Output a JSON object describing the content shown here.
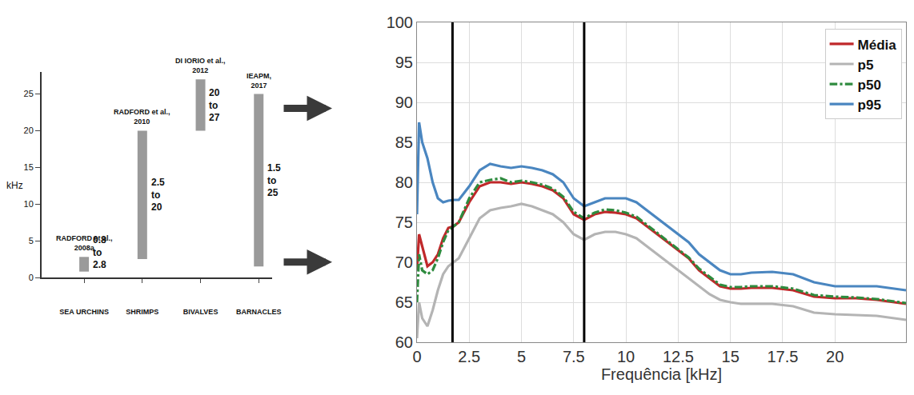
{
  "chart_data": [
    {
      "type": "range_bar",
      "y_label": "kHz",
      "categories": [
        "SEA URCHINS",
        "SHRIMPS",
        "BIVALVES",
        "BARNACLES"
      ],
      "low": [
        0.8,
        2.5,
        20,
        1.5
      ],
      "high": [
        2.8,
        20,
        27,
        25
      ],
      "value_labels": [
        "0.8 to 2.8",
        "2.5 to 20",
        "20 to 27",
        "1.5 to 25"
      ],
      "annotations": [
        "RADFORD et al., 2008a",
        "RADFORD et al., 2010",
        "DI IORIO et al., 2012",
        "IEAPM, 2017"
      ],
      "color": "#9a9a9a",
      "ylim": [
        0,
        28
      ],
      "yticks": [
        0,
        5,
        10,
        15,
        20,
        25
      ],
      "grid": false
    },
    {
      "type": "line",
      "x_label": "Frequência [kHz]",
      "x": [
        0,
        0.1,
        0.25,
        0.5,
        0.75,
        1,
        1.25,
        1.5,
        1.75,
        2,
        2.5,
        3,
        3.5,
        4,
        4.5,
        5,
        5.5,
        6,
        6.5,
        7,
        7.5,
        8,
        8.5,
        9,
        9.5,
        10,
        10.5,
        11,
        11.5,
        12,
        12.5,
        13,
        13.5,
        14,
        14.5,
        15,
        15.5,
        16,
        17,
        18,
        19,
        20,
        21,
        22,
        23.4
      ],
      "series": [
        {
          "name": "Média",
          "color": "#c0282a",
          "line_style": "solid",
          "values": [
            69,
            73.5,
            72,
            69.5,
            70,
            71,
            73,
            74.3,
            74.5,
            75,
            77.5,
            79.5,
            80,
            80,
            79.8,
            80,
            79.8,
            79.5,
            79,
            78,
            76,
            75.3,
            76,
            76.3,
            76.2,
            76,
            75.5,
            74.5,
            73.5,
            72.5,
            71.5,
            70.5,
            69,
            68,
            67,
            66.7,
            66.7,
            66.8,
            66.8,
            66.5,
            65.7,
            65.5,
            65.5,
            65.3,
            64.8
          ]
        },
        {
          "name": "p5",
          "color": "#b4b4b4",
          "line_style": "solid",
          "values": [
            60.5,
            65,
            63,
            62,
            64,
            66.5,
            68.5,
            69.5,
            70,
            70.5,
            73,
            75.5,
            76.5,
            76.8,
            77,
            77.3,
            77,
            76.5,
            76,
            75,
            73.5,
            72.8,
            73.5,
            73.8,
            73.8,
            73.5,
            73,
            72,
            71,
            70,
            69,
            68,
            67,
            66,
            65.3,
            65,
            64.8,
            64.8,
            64.8,
            64.5,
            63.7,
            63.5,
            63.4,
            63.3,
            62.8
          ]
        },
        {
          "name": "p50",
          "color": "#2e8b3e",
          "line_style": "dashdot",
          "values": [
            65,
            71,
            69,
            68.5,
            69,
            70.5,
            72.5,
            74,
            74.5,
            75,
            78,
            80,
            80.3,
            80.5,
            80,
            80.2,
            80,
            79.7,
            79.2,
            78.2,
            76.3,
            75.5,
            76.2,
            76.6,
            76.5,
            76.2,
            75.7,
            74.7,
            73.7,
            72.6,
            71.6,
            70.6,
            69.2,
            68.2,
            67.2,
            66.9,
            66.9,
            67,
            67,
            66.7,
            65.9,
            65.7,
            65.6,
            65.4,
            64.9
          ]
        },
        {
          "name": "p95",
          "color": "#4a86c0",
          "line_style": "solid",
          "values": [
            76,
            87.5,
            85,
            83,
            80,
            78,
            77.5,
            77.7,
            77.8,
            77.8,
            79.5,
            81.5,
            82.3,
            82,
            81.8,
            82,
            81.8,
            81.5,
            81,
            80,
            78,
            77,
            77.5,
            78,
            78,
            78,
            77.5,
            76.5,
            75.5,
            74.5,
            73.5,
            72.5,
            71,
            70,
            69,
            68.5,
            68.5,
            68.7,
            68.8,
            68.5,
            67.5,
            67,
            67,
            67,
            66.5
          ]
        }
      ],
      "vlines": [
        1.7,
        8.0
      ],
      "xlim": [
        0,
        23.4
      ],
      "xticks": [
        0,
        2.5,
        5,
        7.5,
        10,
        12.5,
        15,
        17.5,
        20
      ],
      "ylim": [
        60,
        100
      ],
      "yticks": [
        60,
        65,
        70,
        75,
        80,
        85,
        90,
        95,
        100
      ],
      "grid": true,
      "legend": "top right"
    }
  ]
}
